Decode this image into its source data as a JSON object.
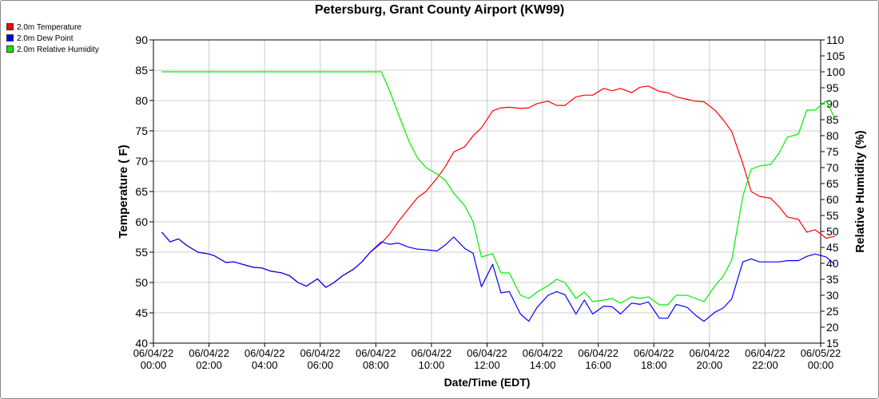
{
  "chart_data": {
    "type": "line",
    "title": "Petersburg, Grant County Airport (KW99)",
    "xlabel": "Date/Time (EDT)",
    "ylabel": "Temperature ( F)",
    "y2label": "Relative Humidity (%)",
    "ylim": [
      40,
      90
    ],
    "y_ticks": [
      40,
      45,
      50,
      55,
      60,
      65,
      70,
      75,
      80,
      85,
      90
    ],
    "y2lim": [
      15,
      110
    ],
    "y2_ticks": [
      15,
      20,
      25,
      30,
      35,
      40,
      45,
      50,
      55,
      60,
      65,
      70,
      75,
      80,
      85,
      90,
      95,
      100,
      105,
      110
    ],
    "x_range_hours": [
      0,
      24
    ],
    "x_ticks": [
      {
        "h": 0,
        "date": "06/04/22",
        "time": "00:00"
      },
      {
        "h": 2,
        "date": "06/04/22",
        "time": "02:00"
      },
      {
        "h": 4,
        "date": "06/04/22",
        "time": "04:00"
      },
      {
        "h": 6,
        "date": "06/04/22",
        "time": "06:00"
      },
      {
        "h": 8,
        "date": "06/04/22",
        "time": "08:00"
      },
      {
        "h": 10,
        "date": "06/04/22",
        "time": "10:00"
      },
      {
        "h": 12,
        "date": "06/04/22",
        "time": "12:00"
      },
      {
        "h": 14,
        "date": "06/04/22",
        "time": "14:00"
      },
      {
        "h": 16,
        "date": "06/04/22",
        "time": "16:00"
      },
      {
        "h": 18,
        "date": "06/04/22",
        "time": "18:00"
      },
      {
        "h": 20,
        "date": "06/04/22",
        "time": "20:00"
      },
      {
        "h": 22,
        "date": "06/04/22",
        "time": "22:00"
      },
      {
        "h": 24,
        "date": "06/05/22",
        "time": "00:00"
      }
    ],
    "grid": true,
    "legend_position": "top-left",
    "series": [
      {
        "name": "2.0m Temperature",
        "color": "#ff0000",
        "axis": "left",
        "points": [
          [
            0.3,
            58.3
          ],
          [
            0.6,
            56.7
          ],
          [
            0.9,
            57.2
          ],
          [
            1.2,
            56.1
          ],
          [
            1.6,
            55.0
          ],
          [
            2.0,
            54.7
          ],
          [
            2.2,
            54.4
          ],
          [
            2.6,
            53.3
          ],
          [
            2.9,
            53.4
          ],
          [
            3.2,
            53.0
          ],
          [
            3.6,
            52.5
          ],
          [
            3.9,
            52.4
          ],
          [
            4.2,
            51.9
          ],
          [
            4.6,
            51.6
          ],
          [
            4.9,
            51.1
          ],
          [
            5.2,
            50.0
          ],
          [
            5.5,
            49.4
          ],
          [
            5.9,
            50.6
          ],
          [
            6.2,
            49.2
          ],
          [
            6.5,
            50.0
          ],
          [
            6.8,
            51.1
          ],
          [
            7.2,
            52.2
          ],
          [
            7.5,
            53.4
          ],
          [
            7.8,
            55.0
          ],
          [
            8.2,
            56.5
          ],
          [
            8.5,
            58.0
          ],
          [
            8.8,
            60.0
          ],
          [
            9.2,
            62.3
          ],
          [
            9.5,
            64.0
          ],
          [
            9.8,
            65.0
          ],
          [
            10.2,
            67.2
          ],
          [
            10.5,
            69.1
          ],
          [
            10.8,
            71.5
          ],
          [
            11.2,
            72.4
          ],
          [
            11.5,
            74.2
          ],
          [
            11.8,
            75.5
          ],
          [
            12.2,
            78.3
          ],
          [
            12.5,
            78.8
          ],
          [
            12.8,
            78.9
          ],
          [
            13.2,
            78.7
          ],
          [
            13.5,
            78.8
          ],
          [
            13.8,
            79.5
          ],
          [
            14.2,
            79.9
          ],
          [
            14.5,
            79.2
          ],
          [
            14.8,
            79.2
          ],
          [
            15.2,
            80.6
          ],
          [
            15.5,
            80.9
          ],
          [
            15.8,
            80.9
          ],
          [
            16.2,
            82.0
          ],
          [
            16.5,
            81.6
          ],
          [
            16.8,
            82.0
          ],
          [
            17.2,
            81.3
          ],
          [
            17.5,
            82.2
          ],
          [
            17.8,
            82.4
          ],
          [
            18.2,
            81.5
          ],
          [
            18.5,
            81.3
          ],
          [
            18.8,
            80.6
          ],
          [
            19.2,
            80.2
          ],
          [
            19.5,
            79.9
          ],
          [
            19.8,
            79.8
          ],
          [
            20.2,
            78.4
          ],
          [
            20.5,
            76.8
          ],
          [
            20.8,
            74.9
          ],
          [
            21.2,
            69.6
          ],
          [
            21.5,
            65.0
          ],
          [
            21.8,
            64.2
          ],
          [
            22.2,
            63.9
          ],
          [
            22.5,
            62.5
          ],
          [
            22.8,
            60.8
          ],
          [
            23.2,
            60.4
          ],
          [
            23.5,
            58.3
          ],
          [
            23.8,
            58.7
          ],
          [
            24.2,
            57.3
          ],
          [
            24.5,
            57.6
          ]
        ]
      },
      {
        "name": "2.0m Dew Point",
        "color": "#0000ff",
        "axis": "left",
        "points": [
          [
            0.3,
            58.3
          ],
          [
            0.6,
            56.7
          ],
          [
            0.9,
            57.2
          ],
          [
            1.2,
            56.1
          ],
          [
            1.6,
            55.0
          ],
          [
            2.0,
            54.7
          ],
          [
            2.2,
            54.4
          ],
          [
            2.6,
            53.3
          ],
          [
            2.9,
            53.4
          ],
          [
            3.2,
            53.0
          ],
          [
            3.6,
            52.5
          ],
          [
            3.9,
            52.4
          ],
          [
            4.2,
            51.9
          ],
          [
            4.6,
            51.6
          ],
          [
            4.9,
            51.1
          ],
          [
            5.2,
            50.0
          ],
          [
            5.5,
            49.4
          ],
          [
            5.9,
            50.6
          ],
          [
            6.2,
            49.2
          ],
          [
            6.5,
            50.0
          ],
          [
            6.8,
            51.1
          ],
          [
            7.2,
            52.2
          ],
          [
            7.5,
            53.4
          ],
          [
            7.8,
            55.0
          ],
          [
            8.2,
            56.7
          ],
          [
            8.5,
            56.3
          ],
          [
            8.8,
            56.5
          ],
          [
            9.2,
            55.8
          ],
          [
            9.5,
            55.5
          ],
          [
            9.8,
            55.4
          ],
          [
            10.2,
            55.2
          ],
          [
            10.5,
            56.2
          ],
          [
            10.8,
            57.5
          ],
          [
            11.2,
            55.6
          ],
          [
            11.5,
            54.8
          ],
          [
            11.8,
            49.3
          ],
          [
            12.2,
            53.0
          ],
          [
            12.5,
            48.3
          ],
          [
            12.8,
            48.5
          ],
          [
            13.2,
            44.8
          ],
          [
            13.5,
            43.6
          ],
          [
            13.8,
            45.9
          ],
          [
            14.2,
            47.9
          ],
          [
            14.5,
            48.5
          ],
          [
            14.8,
            48.0
          ],
          [
            15.2,
            44.8
          ],
          [
            15.5,
            47.1
          ],
          [
            15.8,
            44.8
          ],
          [
            16.2,
            46.1
          ],
          [
            16.5,
            46.0
          ],
          [
            16.8,
            44.8
          ],
          [
            17.2,
            46.6
          ],
          [
            17.5,
            46.4
          ],
          [
            17.8,
            46.8
          ],
          [
            18.2,
            44.1
          ],
          [
            18.5,
            44.1
          ],
          [
            18.8,
            46.4
          ],
          [
            19.2,
            45.9
          ],
          [
            19.5,
            44.6
          ],
          [
            19.8,
            43.6
          ],
          [
            20.2,
            45.1
          ],
          [
            20.5,
            45.8
          ],
          [
            20.8,
            47.3
          ],
          [
            21.2,
            53.4
          ],
          [
            21.5,
            53.9
          ],
          [
            21.8,
            53.4
          ],
          [
            22.2,
            53.4
          ],
          [
            22.5,
            53.4
          ],
          [
            22.8,
            53.6
          ],
          [
            23.2,
            53.6
          ],
          [
            23.5,
            54.3
          ],
          [
            23.8,
            54.7
          ],
          [
            24.2,
            54.2
          ],
          [
            24.5,
            53.0
          ]
        ]
      },
      {
        "name": "2.0m Relative Humidity",
        "color": "#00ee00",
        "axis": "right",
        "points": [
          [
            0.3,
            100
          ],
          [
            1,
            100
          ],
          [
            2,
            100
          ],
          [
            3,
            100
          ],
          [
            4,
            100
          ],
          [
            5,
            100
          ],
          [
            6,
            100
          ],
          [
            7,
            100
          ],
          [
            8,
            100
          ],
          [
            8.2,
            100
          ],
          [
            8.5,
            94
          ],
          [
            8.8,
            87
          ],
          [
            9.2,
            78
          ],
          [
            9.5,
            73
          ],
          [
            9.8,
            70
          ],
          [
            10.2,
            68
          ],
          [
            10.5,
            66
          ],
          [
            10.8,
            62
          ],
          [
            11.2,
            58
          ],
          [
            11.5,
            53
          ],
          [
            11.8,
            42
          ],
          [
            12.2,
            43
          ],
          [
            12.5,
            37
          ],
          [
            12.8,
            37
          ],
          [
            13.2,
            30
          ],
          [
            13.5,
            29
          ],
          [
            13.8,
            31
          ],
          [
            14.2,
            33
          ],
          [
            14.5,
            35
          ],
          [
            14.8,
            34
          ],
          [
            15.2,
            29
          ],
          [
            15.5,
            31
          ],
          [
            15.8,
            28
          ],
          [
            16.2,
            28.5
          ],
          [
            16.5,
            29
          ],
          [
            16.8,
            27.5
          ],
          [
            17.2,
            29.5
          ],
          [
            17.5,
            29
          ],
          [
            17.8,
            29.5
          ],
          [
            18.2,
            27
          ],
          [
            18.5,
            27
          ],
          [
            18.8,
            30
          ],
          [
            19.2,
            30
          ],
          [
            19.5,
            29
          ],
          [
            19.8,
            28
          ],
          [
            20.2,
            33
          ],
          [
            20.5,
            36
          ],
          [
            20.8,
            41
          ],
          [
            21.2,
            61
          ],
          [
            21.5,
            69.5
          ],
          [
            21.8,
            70.5
          ],
          [
            22.2,
            71
          ],
          [
            22.5,
            74.5
          ],
          [
            22.8,
            79.5
          ],
          [
            23.2,
            80.5
          ],
          [
            23.5,
            88
          ],
          [
            23.8,
            88
          ],
          [
            24.2,
            91
          ],
          [
            24.5,
            85.5
          ]
        ]
      }
    ]
  }
}
